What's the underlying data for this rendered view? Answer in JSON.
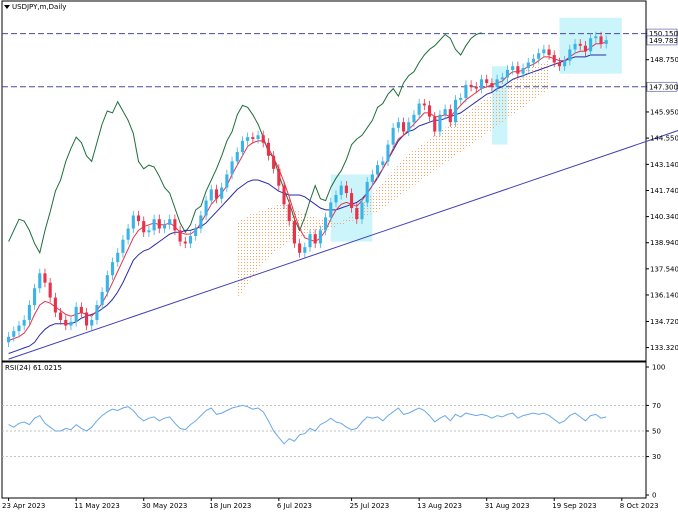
{
  "window": {
    "title": "USDJPY,m,Daily",
    "menu_icon": "triangle-down-icon"
  },
  "price_panel": {
    "y_ticks": [
      "133.320",
      "134.720",
      "136.140",
      "137.540",
      "138.940",
      "140.340",
      "141.740",
      "143.140",
      "144.550",
      "145.950",
      "147.300",
      "148.750",
      "150.150"
    ],
    "levels": [
      {
        "label": "150.150",
        "value": 150.15,
        "color": "#4a4a9a"
      },
      {
        "label": "147.300",
        "value": 147.3,
        "color": "#4a4a9a"
      }
    ],
    "current_price_label": "149.783",
    "current_price": 149.783
  },
  "rsi_panel": {
    "title": "RSI(24) 61.0215",
    "y_ticks": [
      "100",
      "70",
      "50",
      "30",
      "0"
    ],
    "levels": [
      70,
      50,
      30
    ]
  },
  "x_axis": {
    "labels": [
      "23 Apr 2023",
      "11 May 2023",
      "30 May 2023",
      "18 Jun 2023",
      "6 Jul 2023",
      "25 Jul 2023",
      "13 Aug 2023",
      "31 Aug 2023",
      "19 Sep 2023",
      "8 Oct 2023"
    ]
  },
  "colors": {
    "bull": "#3ab4e8",
    "bear": "#e8324a",
    "tenkan": "#e8324a",
    "kijun": "#2a2aaa",
    "chikou": "#1e6e3c",
    "kumo": "#f4a460",
    "trendline": "#4040b8",
    "rsi": "#6aa8e8",
    "highlight": "#bff2fa"
  },
  "chart_data": [
    {
      "type": "candlestick",
      "title": "USDJPY,m,Daily",
      "ylim": [
        132.6,
        151.2
      ],
      "x_labels": [
        "23 Apr 2023",
        "11 May 2023",
        "30 May 2023",
        "18 Jun 2023",
        "6 Jul 2023",
        "25 Jul 2023",
        "13 Aug 2023",
        "31 Aug 2023",
        "19 Sep 2023",
        "8 Oct 2023"
      ],
      "close": [
        133.9,
        134.2,
        134.5,
        134.8,
        135.6,
        136.5,
        137.3,
        136.8,
        136.0,
        135.2,
        134.8,
        134.5,
        134.7,
        135.5,
        135.2,
        134.5,
        134.8,
        135.6,
        136.3,
        137.2,
        137.9,
        138.4,
        139.1,
        139.7,
        140.4,
        140.1,
        139.5,
        139.6,
        140.2,
        139.7,
        139.9,
        140.2,
        139.6,
        139.0,
        138.9,
        139.3,
        139.7,
        140.4,
        141.2,
        141.8,
        141.3,
        141.9,
        142.6,
        143.3,
        143.8,
        144.4,
        144.6,
        144.5,
        144.7,
        144.3,
        143.6,
        142.9,
        142.0,
        141.0,
        140.1,
        138.9,
        138.4,
        138.7,
        139.4,
        138.9,
        139.6,
        140.3,
        141.1,
        141.5,
        142.0,
        141.6,
        140.8,
        140.2,
        141.1,
        142.2,
        142.6,
        143.1,
        143.3,
        144.2,
        145.1,
        145.4,
        144.9,
        145.4,
        145.8,
        146.4,
        146.3,
        145.7,
        144.9,
        145.8,
        146.1,
        145.4,
        146.6,
        146.7,
        147.4,
        147.3,
        147.2,
        147.7,
        147.5,
        147.3,
        147.7,
        147.8,
        148.2,
        148.4,
        148.0,
        148.3,
        148.6,
        148.8,
        149.1,
        149.3,
        149.0,
        148.6,
        148.4,
        148.7,
        149.3,
        149.6,
        149.5,
        149.2,
        149.9,
        150.0,
        149.6,
        149.8
      ],
      "tenkan": [
        133.7,
        133.8,
        133.9,
        134.1,
        134.5,
        135.1,
        135.6,
        135.8,
        135.7,
        135.5,
        135.3,
        135.1,
        135.0,
        135.1,
        135.2,
        135.1,
        135.0,
        135.3,
        135.7,
        136.2,
        136.8,
        137.4,
        138.0,
        138.6,
        139.2,
        139.6,
        139.8,
        139.9,
        140.0,
        139.9,
        139.9,
        140.0,
        139.8,
        139.5,
        139.4,
        139.4,
        139.6,
        140.0,
        140.5,
        141.0,
        141.3,
        141.6,
        142.0,
        142.6,
        143.1,
        143.6,
        144.1,
        144.3,
        144.4,
        144.4,
        144.0,
        143.5,
        142.9,
        142.2,
        141.4,
        140.5,
        139.7,
        139.2,
        139.1,
        139.0,
        139.2,
        139.6,
        140.2,
        140.7,
        141.0,
        141.1,
        141.0,
        140.9,
        141.2,
        141.6,
        142.0,
        142.5,
        142.9,
        143.4,
        144.0,
        144.5,
        144.7,
        145.0,
        145.3,
        145.6,
        145.9,
        145.9,
        145.7,
        145.7,
        145.8,
        145.7,
        146.0,
        146.3,
        146.6,
        146.8,
        147.0,
        147.2,
        147.3,
        147.4,
        147.5,
        147.6,
        147.9,
        148.1,
        148.1,
        148.2,
        148.4,
        148.5,
        148.7,
        148.9,
        148.9,
        148.8,
        148.7,
        148.7,
        148.9,
        149.1,
        149.2,
        149.2,
        149.4,
        149.6,
        149.6,
        149.7
      ],
      "kijun": [
        133.0,
        133.1,
        133.2,
        133.3,
        133.4,
        133.6,
        134.0,
        134.3,
        134.5,
        134.6,
        134.6,
        134.6,
        134.6,
        134.7,
        134.9,
        135.0,
        135.1,
        135.2,
        135.4,
        135.6,
        135.9,
        136.3,
        136.8,
        137.4,
        138.0,
        138.3,
        138.5,
        138.6,
        138.8,
        139.0,
        139.2,
        139.4,
        139.5,
        139.5,
        139.6,
        139.6,
        139.7,
        139.8,
        140.0,
        140.3,
        140.6,
        140.9,
        141.2,
        141.5,
        141.8,
        142.0,
        142.2,
        142.3,
        142.3,
        142.2,
        142.1,
        141.9,
        141.7,
        141.6,
        141.5,
        141.5,
        141.5,
        141.4,
        141.2,
        141.0,
        140.8,
        140.7,
        140.7,
        140.7,
        140.8,
        140.9,
        141.0,
        141.1,
        141.3,
        141.6,
        142.0,
        142.4,
        142.9,
        143.4,
        143.9,
        144.4,
        144.7,
        144.9,
        145.0,
        145.2,
        145.3,
        145.4,
        145.5,
        145.5,
        145.6,
        145.7,
        145.8,
        145.9,
        146.1,
        146.3,
        146.5,
        146.7,
        146.9,
        147.0,
        147.2,
        147.3,
        147.5,
        147.7,
        147.8,
        147.9,
        148.0,
        148.1,
        148.2,
        148.3,
        148.4,
        148.5,
        148.6,
        148.7,
        148.8,
        148.9,
        148.9,
        148.9,
        149.0,
        149.0,
        149.0,
        149.0
      ],
      "chikou": [
        139.0,
        139.6,
        140.2,
        140.1,
        139.6,
        138.9,
        138.4,
        139.6,
        140.6,
        141.7,
        142.3,
        143.3,
        144.0,
        144.6,
        144.3,
        143.6,
        143.3,
        144.3,
        145.3,
        146.0,
        145.9,
        146.5,
        146.0,
        145.5,
        144.8,
        143.3,
        142.9,
        143.1,
        143.0,
        142.5,
        141.9,
        141.6,
        140.8,
        140.0,
        139.5,
        139.9,
        140.7,
        140.9,
        141.7,
        142.3,
        142.9,
        143.6,
        144.4,
        144.9,
        145.8,
        146.3,
        146.2,
        145.8,
        145.3,
        144.6,
        143.8,
        143.5,
        142.6,
        141.8,
        141.1,
        140.2,
        139.6,
        140.3,
        141.2,
        142.0,
        141.3,
        141.2,
        141.9,
        142.4,
        142.8,
        143.4,
        144.2,
        144.5,
        144.7,
        145.1,
        145.5,
        146.2,
        146.4,
        146.9,
        147.2,
        146.8,
        147.5,
        147.9,
        148.1,
        148.6,
        149.0,
        149.3,
        149.5,
        149.8,
        150.1,
        149.9,
        149.3,
        149.0,
        149.5,
        149.9,
        150.1,
        150.2
      ],
      "chikou_start_index": 0,
      "cloud_span_a": [
        140.0,
        140.2,
        140.4,
        140.5,
        140.6,
        140.7,
        140.8,
        140.9,
        141.0,
        141.0,
        140.9,
        140.8,
        140.6,
        140.5,
        140.4,
        140.3,
        140.2,
        140.2,
        140.1,
        140.1,
        140.1,
        140.2,
        140.4,
        140.7,
        141.0,
        141.3,
        141.6,
        141.9,
        142.2,
        142.5,
        142.8,
        143.1,
        143.4,
        143.7,
        143.9,
        144.1,
        144.3,
        144.5,
        144.7,
        144.9,
        145.1,
        145.3,
        145.5,
        145.7,
        145.9,
        146.1,
        146.3,
        146.5,
        146.7,
        146.9,
        147.1,
        147.3,
        147.5,
        147.7,
        147.9,
        148.1,
        148.3,
        148.4,
        148.5,
        148.6,
        148.7
      ],
      "cloud_span_b": [
        136.0,
        136.3,
        136.7,
        137.1,
        137.5,
        137.8,
        138.1,
        138.4,
        138.6,
        138.8,
        139.0,
        139.1,
        139.2,
        139.3,
        139.4,
        139.5,
        139.6,
        139.6,
        139.7,
        139.8,
        139.9,
        140.0,
        140.1,
        140.2,
        140.3,
        140.4,
        140.5,
        140.6,
        140.8,
        141.0,
        141.2,
        141.4,
        141.6,
        141.8,
        142.0,
        142.2,
        142.4,
        142.6,
        142.8,
        143.0,
        143.2,
        143.4,
        143.6,
        143.8,
        144.0,
        144.2,
        144.4,
        144.6,
        144.8,
        145.0,
        145.2,
        145.4,
        145.6,
        145.8,
        146.0,
        146.2,
        146.4,
        146.6,
        146.8,
        147.0,
        147.2
      ],
      "cloud_start_index": 44,
      "trendline": {
        "start_index": 0,
        "start_value": 132.7,
        "end_index": 143,
        "end_value": 146.3
      },
      "horizontal_levels": [
        150.15,
        147.3
      ]
    },
    {
      "type": "line",
      "title": "RSI(24) 61.0215",
      "ylim": [
        0,
        100
      ],
      "levels": [
        70,
        50,
        30
      ],
      "values": [
        55,
        53,
        56,
        57,
        55,
        60,
        62,
        56,
        53,
        50,
        50,
        52,
        51,
        55,
        52,
        50,
        53,
        58,
        62,
        65,
        67,
        66,
        68,
        69,
        66,
        61,
        58,
        60,
        61,
        58,
        60,
        61,
        56,
        52,
        51,
        55,
        58,
        62,
        66,
        68,
        63,
        64,
        66,
        68,
        69,
        70,
        69,
        67,
        68,
        65,
        58,
        50,
        45,
        40,
        44,
        42,
        47,
        48,
        52,
        50,
        55,
        57,
        60,
        57,
        56,
        53,
        51,
        52,
        57,
        61,
        60,
        61,
        58,
        62,
        65,
        68,
        63,
        64,
        66,
        68,
        66,
        62,
        57,
        60,
        62,
        58,
        63,
        61,
        64,
        63,
        62,
        63,
        62,
        60,
        62,
        61,
        63,
        64,
        60,
        62,
        63,
        64,
        63,
        64,
        62,
        59,
        56,
        58,
        62,
        64,
        61,
        58,
        62,
        63,
        60,
        61
      ]
    }
  ]
}
